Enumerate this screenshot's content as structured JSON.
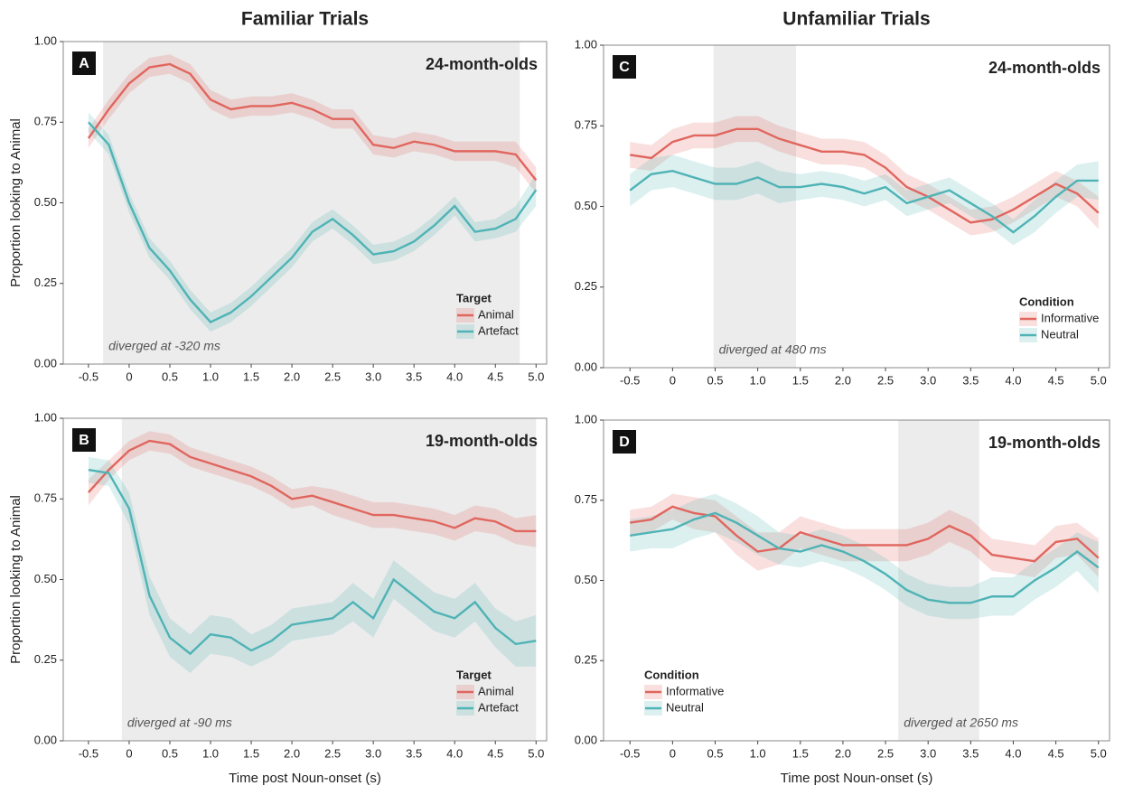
{
  "chart_data": [
    {
      "type": "line",
      "panel": "A",
      "column_title": "Familiar Trials",
      "title": "24-month-olds",
      "ylabel": "Proportion looking to Animal",
      "annotation": "diverged at -320 ms",
      "highlight": [
        -0.32,
        4.8
      ],
      "legend_title": "Target",
      "legend": "lower right",
      "x": [
        -0.5,
        -0.25,
        0,
        0.25,
        0.5,
        0.75,
        1,
        1.25,
        1.5,
        1.75,
        2,
        2.25,
        2.5,
        2.75,
        3,
        3.25,
        3.5,
        3.75,
        4,
        4.25,
        4.5,
        4.75,
        5
      ],
      "series": [
        {
          "name": "Animal",
          "color": "#e0665e",
          "values": [
            0.7,
            0.79,
            0.87,
            0.92,
            0.93,
            0.9,
            0.82,
            0.79,
            0.8,
            0.8,
            0.81,
            0.79,
            0.76,
            0.76,
            0.68,
            0.67,
            0.69,
            0.68,
            0.66,
            0.66,
            0.66,
            0.65,
            0.57
          ],
          "ci": [
            0.03,
            0.03,
            0.03,
            0.03,
            0.03,
            0.03,
            0.03,
            0.03,
            0.03,
            0.03,
            0.03,
            0.03,
            0.03,
            0.03,
            0.03,
            0.03,
            0.03,
            0.03,
            0.03,
            0.03,
            0.03,
            0.04,
            0.04
          ]
        },
        {
          "name": "Artefact",
          "color": "#4fb3b5",
          "values": [
            0.75,
            0.68,
            0.5,
            0.36,
            0.29,
            0.2,
            0.13,
            0.16,
            0.21,
            0.27,
            0.33,
            0.41,
            0.45,
            0.4,
            0.34,
            0.35,
            0.38,
            0.43,
            0.49,
            0.41,
            0.42,
            0.45,
            0.54
          ],
          "ci": [
            0.03,
            0.03,
            0.03,
            0.03,
            0.03,
            0.03,
            0.03,
            0.03,
            0.03,
            0.03,
            0.03,
            0.03,
            0.03,
            0.03,
            0.03,
            0.03,
            0.03,
            0.03,
            0.03,
            0.03,
            0.03,
            0.04,
            0.05
          ]
        }
      ],
      "xlim": [
        -0.81,
        5.13
      ],
      "ylim": [
        0,
        1
      ],
      "xticks": [
        -0.5,
        0,
        0.5,
        {
          "value": 1,
          "label": "1.0"
        },
        1.5,
        {
          "value": 2,
          "label": "2.0"
        },
        2.5,
        {
          "value": 3,
          "label": "3.0"
        },
        3.5,
        {
          "value": 4,
          "label": "4.0"
        },
        4.5,
        {
          "value": 5,
          "label": "5.0"
        }
      ],
      "yticks": [
        {
          "value": 0,
          "label": "0.00"
        },
        {
          "value": 0.25,
          "label": "0.25"
        },
        {
          "value": 0.5,
          "label": "0.50"
        },
        {
          "value": 0.75,
          "label": "0.75"
        },
        {
          "value": 1,
          "label": "1.00"
        }
      ]
    },
    {
      "type": "line",
      "panel": "B",
      "title": "19-month-olds",
      "ylabel": "Proportion looking to Animal",
      "xlabel": "Time post Noun-onset (s)",
      "annotation": "diverged at -90 ms",
      "highlight": [
        -0.09,
        5.0
      ],
      "legend_title": "Target",
      "legend": "lower right",
      "x": [
        -0.5,
        -0.25,
        0,
        0.25,
        0.5,
        0.75,
        1,
        1.25,
        1.5,
        1.75,
        2,
        2.25,
        2.5,
        2.75,
        3,
        3.25,
        3.5,
        3.75,
        4,
        4.25,
        4.5,
        4.75,
        5
      ],
      "series": [
        {
          "name": "Animal",
          "color": "#e0665e",
          "values": [
            0.77,
            0.84,
            0.9,
            0.93,
            0.92,
            0.88,
            0.86,
            0.84,
            0.82,
            0.79,
            0.75,
            0.76,
            0.74,
            0.72,
            0.7,
            0.7,
            0.69,
            0.68,
            0.66,
            0.69,
            0.68,
            0.65,
            0.65
          ],
          "ci": [
            0.04,
            0.03,
            0.03,
            0.03,
            0.03,
            0.03,
            0.03,
            0.03,
            0.03,
            0.03,
            0.03,
            0.03,
            0.04,
            0.04,
            0.04,
            0.04,
            0.04,
            0.04,
            0.04,
            0.04,
            0.04,
            0.04,
            0.05
          ]
        },
        {
          "name": "Artefact",
          "color": "#4fb3b5",
          "values": [
            0.84,
            0.83,
            0.72,
            0.45,
            0.32,
            0.27,
            0.33,
            0.32,
            0.28,
            0.31,
            0.36,
            0.37,
            0.38,
            0.43,
            0.38,
            0.5,
            0.45,
            0.4,
            0.38,
            0.43,
            0.35,
            0.3,
            0.31
          ],
          "ci": [
            0.04,
            0.04,
            0.05,
            0.06,
            0.06,
            0.06,
            0.06,
            0.06,
            0.05,
            0.05,
            0.05,
            0.05,
            0.05,
            0.06,
            0.06,
            0.06,
            0.06,
            0.06,
            0.06,
            0.06,
            0.06,
            0.07,
            0.08
          ]
        }
      ],
      "xlim": [
        -0.81,
        5.13
      ],
      "ylim": [
        0,
        1
      ],
      "xticks": [
        -0.5,
        0,
        0.5,
        {
          "value": 1,
          "label": "1.0"
        },
        1.5,
        {
          "value": 2,
          "label": "2.0"
        },
        2.5,
        {
          "value": 3,
          "label": "3.0"
        },
        3.5,
        {
          "value": 4,
          "label": "4.0"
        },
        4.5,
        {
          "value": 5,
          "label": "5.0"
        }
      ],
      "yticks": [
        {
          "value": 0,
          "label": "0.00"
        },
        {
          "value": 0.25,
          "label": "0.25"
        },
        {
          "value": 0.5,
          "label": "0.50"
        },
        {
          "value": 0.75,
          "label": "0.75"
        },
        {
          "value": 1,
          "label": "1.00"
        }
      ]
    },
    {
      "type": "line",
      "panel": "C",
      "column_title": "Unfamiliar Trials",
      "title": "24-month-olds",
      "annotation": "diverged at 480 ms",
      "highlight": [
        0.48,
        1.45
      ],
      "legend_title": "Condition",
      "legend": "lower right",
      "x": [
        -0.5,
        -0.25,
        0,
        0.25,
        0.5,
        0.75,
        1,
        1.25,
        1.5,
        1.75,
        2,
        2.25,
        2.5,
        2.75,
        3,
        3.25,
        3.5,
        3.75,
        4,
        4.25,
        4.5,
        4.75,
        5
      ],
      "series": [
        {
          "name": "Informative",
          "color": "#e0665e",
          "values": [
            0.66,
            0.65,
            0.7,
            0.72,
            0.72,
            0.74,
            0.74,
            0.71,
            0.69,
            0.67,
            0.67,
            0.66,
            0.62,
            0.56,
            0.53,
            0.49,
            0.45,
            0.46,
            0.49,
            0.53,
            0.57,
            0.54,
            0.48
          ],
          "ci": [
            0.04,
            0.04,
            0.04,
            0.04,
            0.04,
            0.04,
            0.04,
            0.04,
            0.04,
            0.04,
            0.04,
            0.04,
            0.04,
            0.04,
            0.04,
            0.04,
            0.04,
            0.04,
            0.04,
            0.04,
            0.04,
            0.04,
            0.05
          ]
        },
        {
          "name": "Neutral",
          "color": "#4fb3b5",
          "values": [
            0.55,
            0.6,
            0.61,
            0.59,
            0.57,
            0.57,
            0.59,
            0.56,
            0.56,
            0.57,
            0.56,
            0.54,
            0.56,
            0.51,
            0.53,
            0.55,
            0.51,
            0.47,
            0.42,
            0.47,
            0.53,
            0.58,
            0.58
          ],
          "ci": [
            0.05,
            0.05,
            0.05,
            0.05,
            0.05,
            0.05,
            0.05,
            0.05,
            0.04,
            0.04,
            0.04,
            0.04,
            0.04,
            0.04,
            0.04,
            0.04,
            0.04,
            0.04,
            0.04,
            0.05,
            0.05,
            0.05,
            0.06
          ]
        }
      ],
      "xlim": [
        -0.81,
        5.13
      ],
      "ylim": [
        0,
        1
      ],
      "xticks": [
        -0.5,
        0,
        0.5,
        {
          "value": 1,
          "label": "1.0"
        },
        1.5,
        {
          "value": 2,
          "label": "2.0"
        },
        2.5,
        {
          "value": 3,
          "label": "3.0"
        },
        3.5,
        {
          "value": 4,
          "label": "4.0"
        },
        4.5,
        {
          "value": 5,
          "label": "5.0"
        }
      ],
      "yticks": [
        {
          "value": 0,
          "label": "0.00"
        },
        {
          "value": 0.25,
          "label": "0.25"
        },
        {
          "value": 0.5,
          "label": "0.50"
        },
        {
          "value": 0.75,
          "label": "0.75"
        },
        {
          "value": 1,
          "label": "1.00"
        }
      ]
    },
    {
      "type": "line",
      "panel": "D",
      "title": "19-month-olds",
      "xlabel": "Time post Noun-onset (s)",
      "annotation": "diverged at 2650 ms",
      "highlight": [
        2.65,
        3.6
      ],
      "legend_title": "Condition",
      "legend": "lower left",
      "x": [
        -0.5,
        -0.25,
        0,
        0.25,
        0.5,
        0.75,
        1,
        1.25,
        1.5,
        1.75,
        2,
        2.25,
        2.5,
        2.75,
        3,
        3.25,
        3.5,
        3.75,
        4,
        4.25,
        4.5,
        4.75,
        5
      ],
      "series": [
        {
          "name": "Informative",
          "color": "#e0665e",
          "values": [
            0.68,
            0.69,
            0.73,
            0.71,
            0.7,
            0.64,
            0.59,
            0.6,
            0.65,
            0.63,
            0.61,
            0.61,
            0.61,
            0.61,
            0.63,
            0.67,
            0.64,
            0.58,
            0.57,
            0.56,
            0.62,
            0.63,
            0.57
          ],
          "ci": [
            0.04,
            0.04,
            0.04,
            0.05,
            0.05,
            0.06,
            0.06,
            0.05,
            0.05,
            0.05,
            0.05,
            0.05,
            0.05,
            0.05,
            0.05,
            0.05,
            0.05,
            0.05,
            0.05,
            0.05,
            0.05,
            0.05,
            0.06
          ]
        },
        {
          "name": "Neutral",
          "color": "#4fb3b5",
          "values": [
            0.64,
            0.65,
            0.66,
            0.69,
            0.71,
            0.68,
            0.64,
            0.6,
            0.59,
            0.61,
            0.59,
            0.56,
            0.52,
            0.47,
            0.44,
            0.43,
            0.43,
            0.45,
            0.45,
            0.5,
            0.54,
            0.59,
            0.54
          ],
          "ci": [
            0.05,
            0.05,
            0.06,
            0.06,
            0.06,
            0.06,
            0.06,
            0.05,
            0.05,
            0.05,
            0.05,
            0.05,
            0.05,
            0.05,
            0.05,
            0.05,
            0.05,
            0.06,
            0.06,
            0.06,
            0.06,
            0.06,
            0.08
          ]
        }
      ],
      "xlim": [
        -0.81,
        5.13
      ],
      "ylim": [
        0,
        1
      ],
      "xticks": [
        -0.5,
        0,
        0.5,
        {
          "value": 1,
          "label": "1.0"
        },
        1.5,
        {
          "value": 2,
          "label": "2.0"
        },
        2.5,
        {
          "value": 3,
          "label": "3.0"
        },
        3.5,
        {
          "value": 4,
          "label": "4.0"
        },
        4.5,
        {
          "value": 5,
          "label": "5.0"
        }
      ],
      "yticks": [
        {
          "value": 0,
          "label": "0.00"
        },
        {
          "value": 0.25,
          "label": "0.25"
        },
        {
          "value": 0.5,
          "label": "0.50"
        },
        {
          "value": 0.75,
          "label": "0.75"
        },
        {
          "value": 1,
          "label": "1.00"
        }
      ]
    }
  ]
}
